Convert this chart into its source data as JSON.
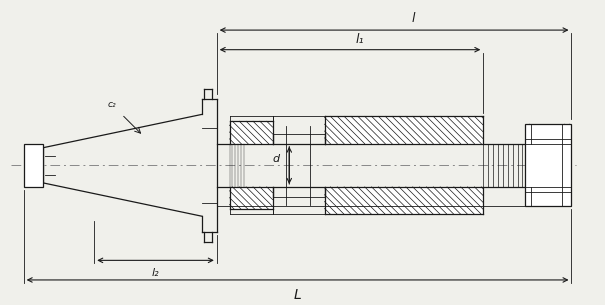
{
  "bg_color": "#f0f0eb",
  "line_color": "#1a1a1a",
  "fig_width": 6.05,
  "fig_height": 3.05,
  "dpi": 100,
  "labels": {
    "L_top": "l",
    "L1": "l₁",
    "L2": "l₂",
    "d": "d",
    "c2": "c₂",
    "L_bot": "L"
  }
}
